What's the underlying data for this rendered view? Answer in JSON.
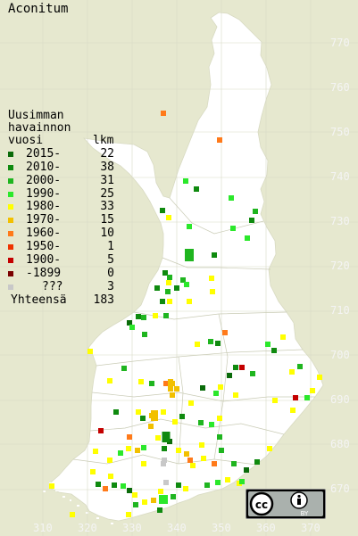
{
  "title": "Aconitum",
  "legend": {
    "heading": [
      "Uusimman",
      "havainnon",
      "vuosi"
    ],
    "count_header": "lkm",
    "items": [
      {
        "label": "2015-",
        "count": "22",
        "color": "#0a6b0a"
      },
      {
        "label": "2010-",
        "count": "38",
        "color": "#0f8a0f"
      },
      {
        "label": "2000-",
        "count": "31",
        "color": "#1fb51f"
      },
      {
        "label": "1990-",
        "count": "25",
        "color": "#2be82b"
      },
      {
        "label": "1980-",
        "count": "33",
        "color": "#ffff00"
      },
      {
        "label": "1970-",
        "count": "15",
        "color": "#f2c000"
      },
      {
        "label": "1960-",
        "count": "10",
        "color": "#ff7a1a"
      },
      {
        "label": "1950-",
        "count": "1",
        "color": "#ee3300"
      },
      {
        "label": "1900-",
        "count": "5",
        "color": "#c40000"
      },
      {
        "label": "-1899",
        "count": "0",
        "color": "#7a0000"
      },
      {
        "label": "???",
        "count": "3",
        "color": "#c8c8c8"
      }
    ],
    "total_label": "Yhteensä",
    "total_count": "183"
  },
  "axis_y": [
    "770",
    "760",
    "750",
    "740",
    "730",
    "720",
    "710",
    "700",
    "690",
    "680",
    "670"
  ],
  "axis_x": [
    "310",
    "320",
    "330",
    "340",
    "350",
    "360",
    "370"
  ],
  "license": {
    "cc_icon": "cc-icon",
    "by_icon": "attribution-icon",
    "by_label": "BY"
  }
}
